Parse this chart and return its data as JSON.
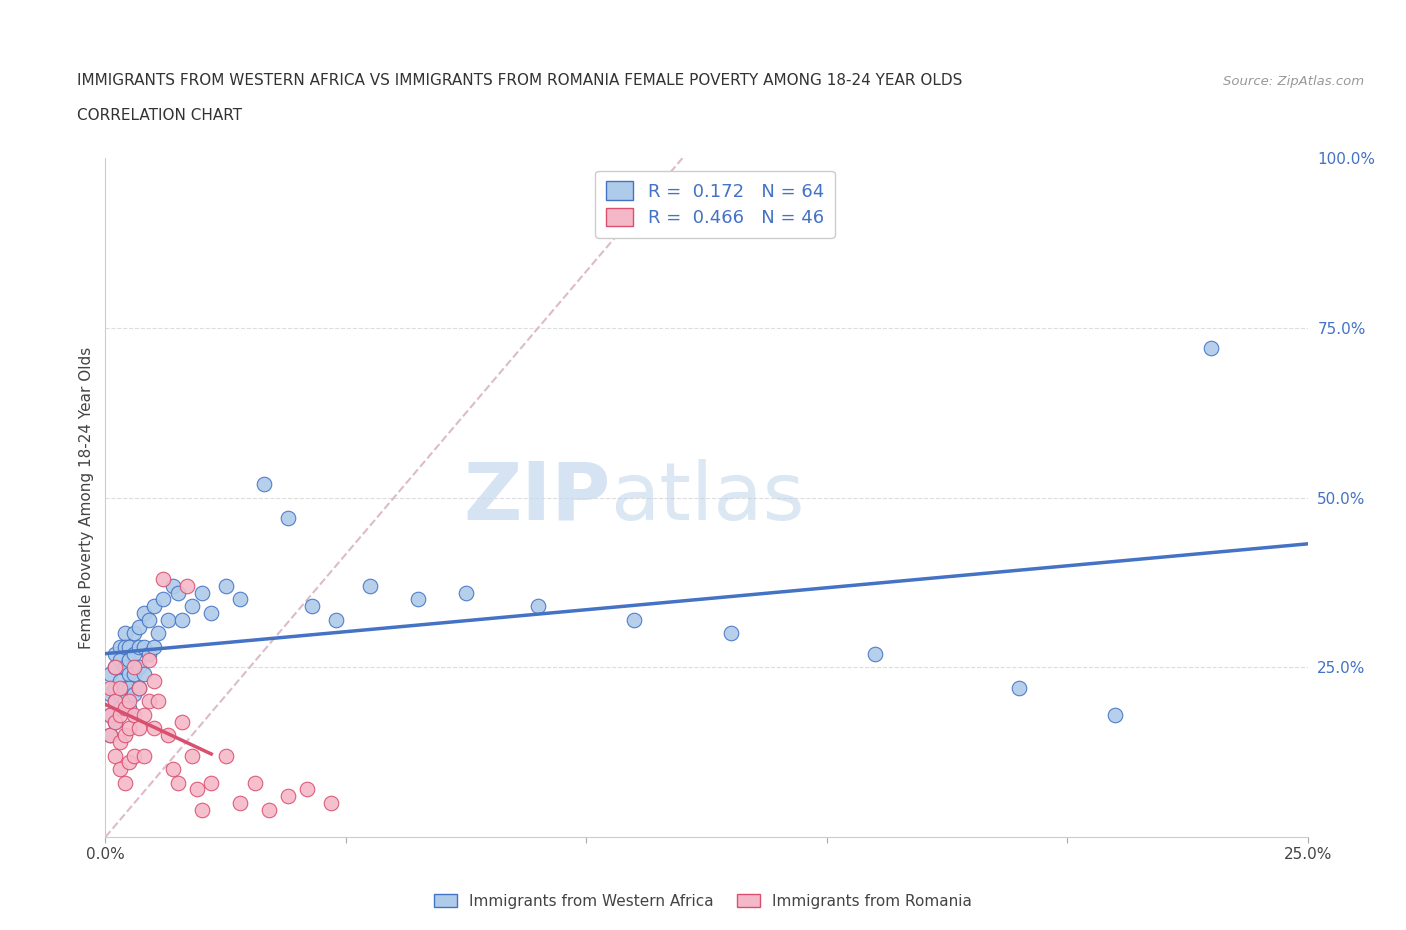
{
  "title_line1": "IMMIGRANTS FROM WESTERN AFRICA VS IMMIGRANTS FROM ROMANIA FEMALE POVERTY AMONG 18-24 YEAR OLDS",
  "title_line2": "CORRELATION CHART",
  "source": "Source: ZipAtlas.com",
  "ylabel": "Female Poverty Among 18-24 Year Olds",
  "xlim": [
    0,
    0.25
  ],
  "ylim": [
    0,
    1.0
  ],
  "xticks": [
    0,
    0.05,
    0.1,
    0.15,
    0.2,
    0.25
  ],
  "yticks_right": [
    0.0,
    0.25,
    0.5,
    0.75,
    1.0
  ],
  "xticklabels": [
    "0.0%",
    "",
    "",
    "",
    "",
    "25.0%"
  ],
  "yticklabels_right": [
    "",
    "25.0%",
    "50.0%",
    "75.0%",
    "100.0%"
  ],
  "series1_label": "Immigrants from Western Africa",
  "series1_color": "#aecbea",
  "series1_edge": "#4472c4",
  "series1_R": 0.172,
  "series1_N": 64,
  "series2_label": "Immigrants from Romania",
  "series2_color": "#f5b8c8",
  "series2_edge": "#d94f6e",
  "series2_R": 0.466,
  "series2_N": 46,
  "regression_color1": "#4472c4",
  "regression_color2": "#d94f6e",
  "legend_R_color": "#4472c4",
  "watermark_zip": "ZIP",
  "watermark_atlas": "atlas",
  "background_color": "#ffffff",
  "scatter1_x": [
    0.001,
    0.001,
    0.001,
    0.001,
    0.002,
    0.002,
    0.002,
    0.002,
    0.002,
    0.003,
    0.003,
    0.003,
    0.003,
    0.003,
    0.004,
    0.004,
    0.004,
    0.004,
    0.004,
    0.005,
    0.005,
    0.005,
    0.005,
    0.005,
    0.006,
    0.006,
    0.006,
    0.006,
    0.007,
    0.007,
    0.007,
    0.007,
    0.008,
    0.008,
    0.008,
    0.009,
    0.009,
    0.01,
    0.01,
    0.011,
    0.012,
    0.013,
    0.014,
    0.015,
    0.016,
    0.018,
    0.02,
    0.022,
    0.025,
    0.028,
    0.033,
    0.038,
    0.043,
    0.048,
    0.055,
    0.065,
    0.075,
    0.09,
    0.11,
    0.13,
    0.16,
    0.19,
    0.21,
    0.23
  ],
  "scatter1_y": [
    0.21,
    0.24,
    0.18,
    0.15,
    0.27,
    0.22,
    0.2,
    0.25,
    0.17,
    0.28,
    0.23,
    0.21,
    0.26,
    0.19,
    0.3,
    0.25,
    0.22,
    0.28,
    0.2,
    0.28,
    0.24,
    0.22,
    0.26,
    0.19,
    0.3,
    0.27,
    0.24,
    0.21,
    0.31,
    0.28,
    0.25,
    0.22,
    0.33,
    0.28,
    0.24,
    0.32,
    0.27,
    0.34,
    0.28,
    0.3,
    0.35,
    0.32,
    0.37,
    0.36,
    0.32,
    0.34,
    0.36,
    0.33,
    0.37,
    0.35,
    0.52,
    0.47,
    0.34,
    0.32,
    0.37,
    0.35,
    0.36,
    0.34,
    0.32,
    0.3,
    0.27,
    0.22,
    0.18,
    0.72
  ],
  "scatter2_x": [
    0.001,
    0.001,
    0.001,
    0.002,
    0.002,
    0.002,
    0.002,
    0.003,
    0.003,
    0.003,
    0.003,
    0.004,
    0.004,
    0.004,
    0.005,
    0.005,
    0.005,
    0.006,
    0.006,
    0.006,
    0.007,
    0.007,
    0.008,
    0.008,
    0.009,
    0.009,
    0.01,
    0.01,
    0.011,
    0.012,
    0.013,
    0.014,
    0.015,
    0.016,
    0.017,
    0.018,
    0.019,
    0.02,
    0.022,
    0.025,
    0.028,
    0.031,
    0.034,
    0.038,
    0.042,
    0.047
  ],
  "scatter2_y": [
    0.22,
    0.18,
    0.15,
    0.2,
    0.25,
    0.17,
    0.12,
    0.22,
    0.18,
    0.14,
    0.1,
    0.19,
    0.15,
    0.08,
    0.2,
    0.16,
    0.11,
    0.25,
    0.18,
    0.12,
    0.22,
    0.16,
    0.18,
    0.12,
    0.26,
    0.2,
    0.23,
    0.16,
    0.2,
    0.38,
    0.15,
    0.1,
    0.08,
    0.17,
    0.37,
    0.12,
    0.07,
    0.04,
    0.08,
    0.12,
    0.05,
    0.08,
    0.04,
    0.06,
    0.07,
    0.05
  ],
  "ref_line_color": "#ddbbcc",
  "ref_line_x": [
    0.0,
    0.12
  ],
  "ref_line_y": [
    0.0,
    1.0
  ]
}
